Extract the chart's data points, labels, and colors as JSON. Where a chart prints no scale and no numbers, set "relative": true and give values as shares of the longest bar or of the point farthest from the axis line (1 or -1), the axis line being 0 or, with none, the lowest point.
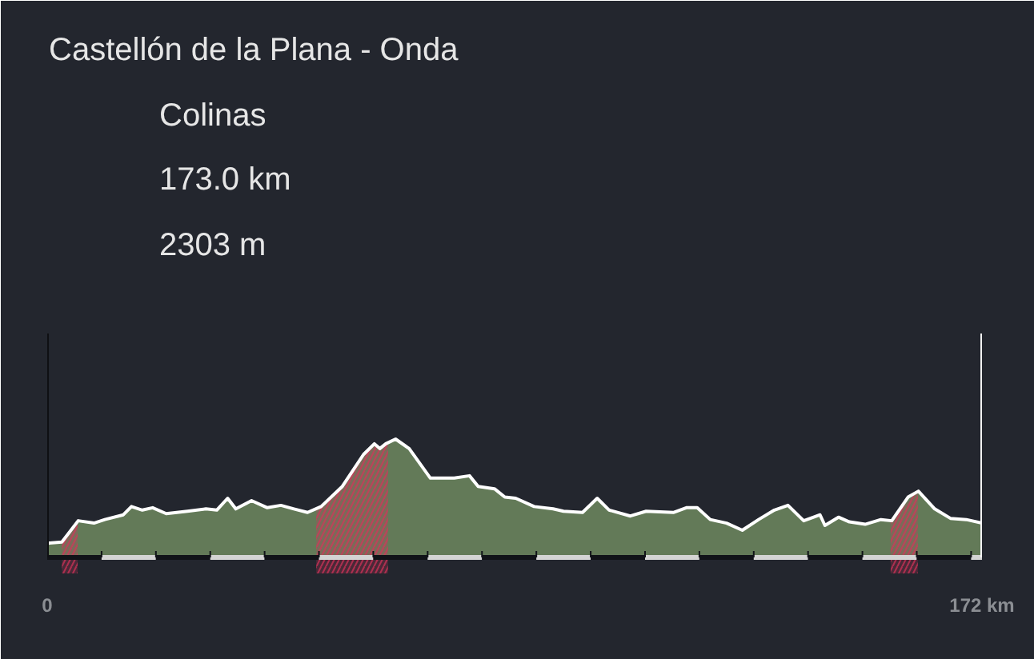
{
  "chart_data": {
    "type": "area",
    "title": "Castellón de la Plana - Onda",
    "annotations": [
      "Colinas",
      "173.0 km",
      "2303 m"
    ],
    "relative": true,
    "x": [
      0,
      2.7,
      5.7,
      8.6,
      10.6,
      14.0,
      15.5,
      17.5,
      19.4,
      21.9,
      25.8,
      29.2,
      31.2,
      33.2,
      34.7,
      37.6,
      40.5,
      43.0,
      45.4,
      47.9,
      50.4,
      54.3,
      58.2,
      60.2,
      61.2,
      62.3,
      64.1,
      66.6,
      70.5,
      74.9,
      77.7,
      79.3,
      82.3,
      84.2,
      86.2,
      89.6,
      93.1,
      95.0,
      98.5,
      101.2,
      103.4,
      107.3,
      110.2,
      115.2,
      117.6,
      119.6,
      122.0,
      125.0,
      127.9,
      130.9,
      133.8,
      136.3,
      139.2,
      142.2,
      143.1,
      145.6,
      147.6,
      150.5,
      153.4,
      155.4,
      158.4,
      160.3,
      163.3,
      166.2,
      169.1,
      172
    ],
    "series": [
      {
        "color": "#637a58",
        "values": [
          0.12,
          0.13,
          0.31,
          0.29,
          0.32,
          0.36,
          0.43,
          0.4,
          0.42,
          0.37,
          0.39,
          0.41,
          0.4,
          0.5,
          0.41,
          0.48,
          0.42,
          0.44,
          0.41,
          0.38,
          0.43,
          0.6,
          0.87,
          0.96,
          0.92,
          0.96,
          1.0,
          0.92,
          0.67,
          0.67,
          0.69,
          0.6,
          0.58,
          0.51,
          0.5,
          0.43,
          0.41,
          0.39,
          0.38,
          0.5,
          0.4,
          0.35,
          0.39,
          0.38,
          0.42,
          0.42,
          0.32,
          0.29,
          0.23,
          0.32,
          0.4,
          0.44,
          0.31,
          0.36,
          0.27,
          0.34,
          0.3,
          0.28,
          0.32,
          0.31,
          0.51,
          0.56,
          0.41,
          0.33,
          0.32,
          0.29
        ]
      },
      {
        "color": "#d7325a",
        "x": [
          2.7,
          5.6
        ],
        "values": [
          0.13,
          0.3
        ]
      },
      {
        "color": "#d7325a",
        "x": [
          49.5,
          50.4,
          54.3,
          58.2,
          60.2,
          61.2,
          62.3,
          62.7
        ],
        "values": [
          0.41,
          0.43,
          0.6,
          0.87,
          0.96,
          0.92,
          0.96,
          0.97
        ]
      },
      {
        "color": "#d7325a",
        "x": [
          155.2,
          160.2
        ],
        "values": [
          0.31,
          0.56
        ]
      }
    ],
    "xlim": [
      0,
      172
    ],
    "xticks": [
      0,
      {
        "value": 10,
        "label": null
      },
      {
        "value": 20,
        "label": null
      },
      {
        "value": 30,
        "label": null
      },
      {
        "value": 40,
        "label": null
      },
      {
        "value": 50,
        "label": null
      },
      {
        "value": 60,
        "label": null
      },
      {
        "value": 70,
        "label": null
      },
      {
        "value": 80,
        "label": null
      },
      {
        "value": 90,
        "label": null
      },
      {
        "value": 100,
        "label": null
      },
      {
        "value": 110,
        "label": null
      },
      {
        "value": 120,
        "label": null
      },
      {
        "value": 130,
        "label": null
      },
      {
        "value": 140,
        "label": null
      },
      {
        "value": 150,
        "label": null
      },
      {
        "value": 160,
        "label": null
      },
      {
        "value": 170,
        "label": null
      },
      {
        "value": 172,
        "label": "172 km"
      }
    ],
    "ref_lines": [
      {
        "axis": "x",
        "value": 0,
        "color": "#0f1013"
      },
      {
        "axis": "x",
        "value": 172,
        "color": "#f2f2f2"
      }
    ]
  }
}
